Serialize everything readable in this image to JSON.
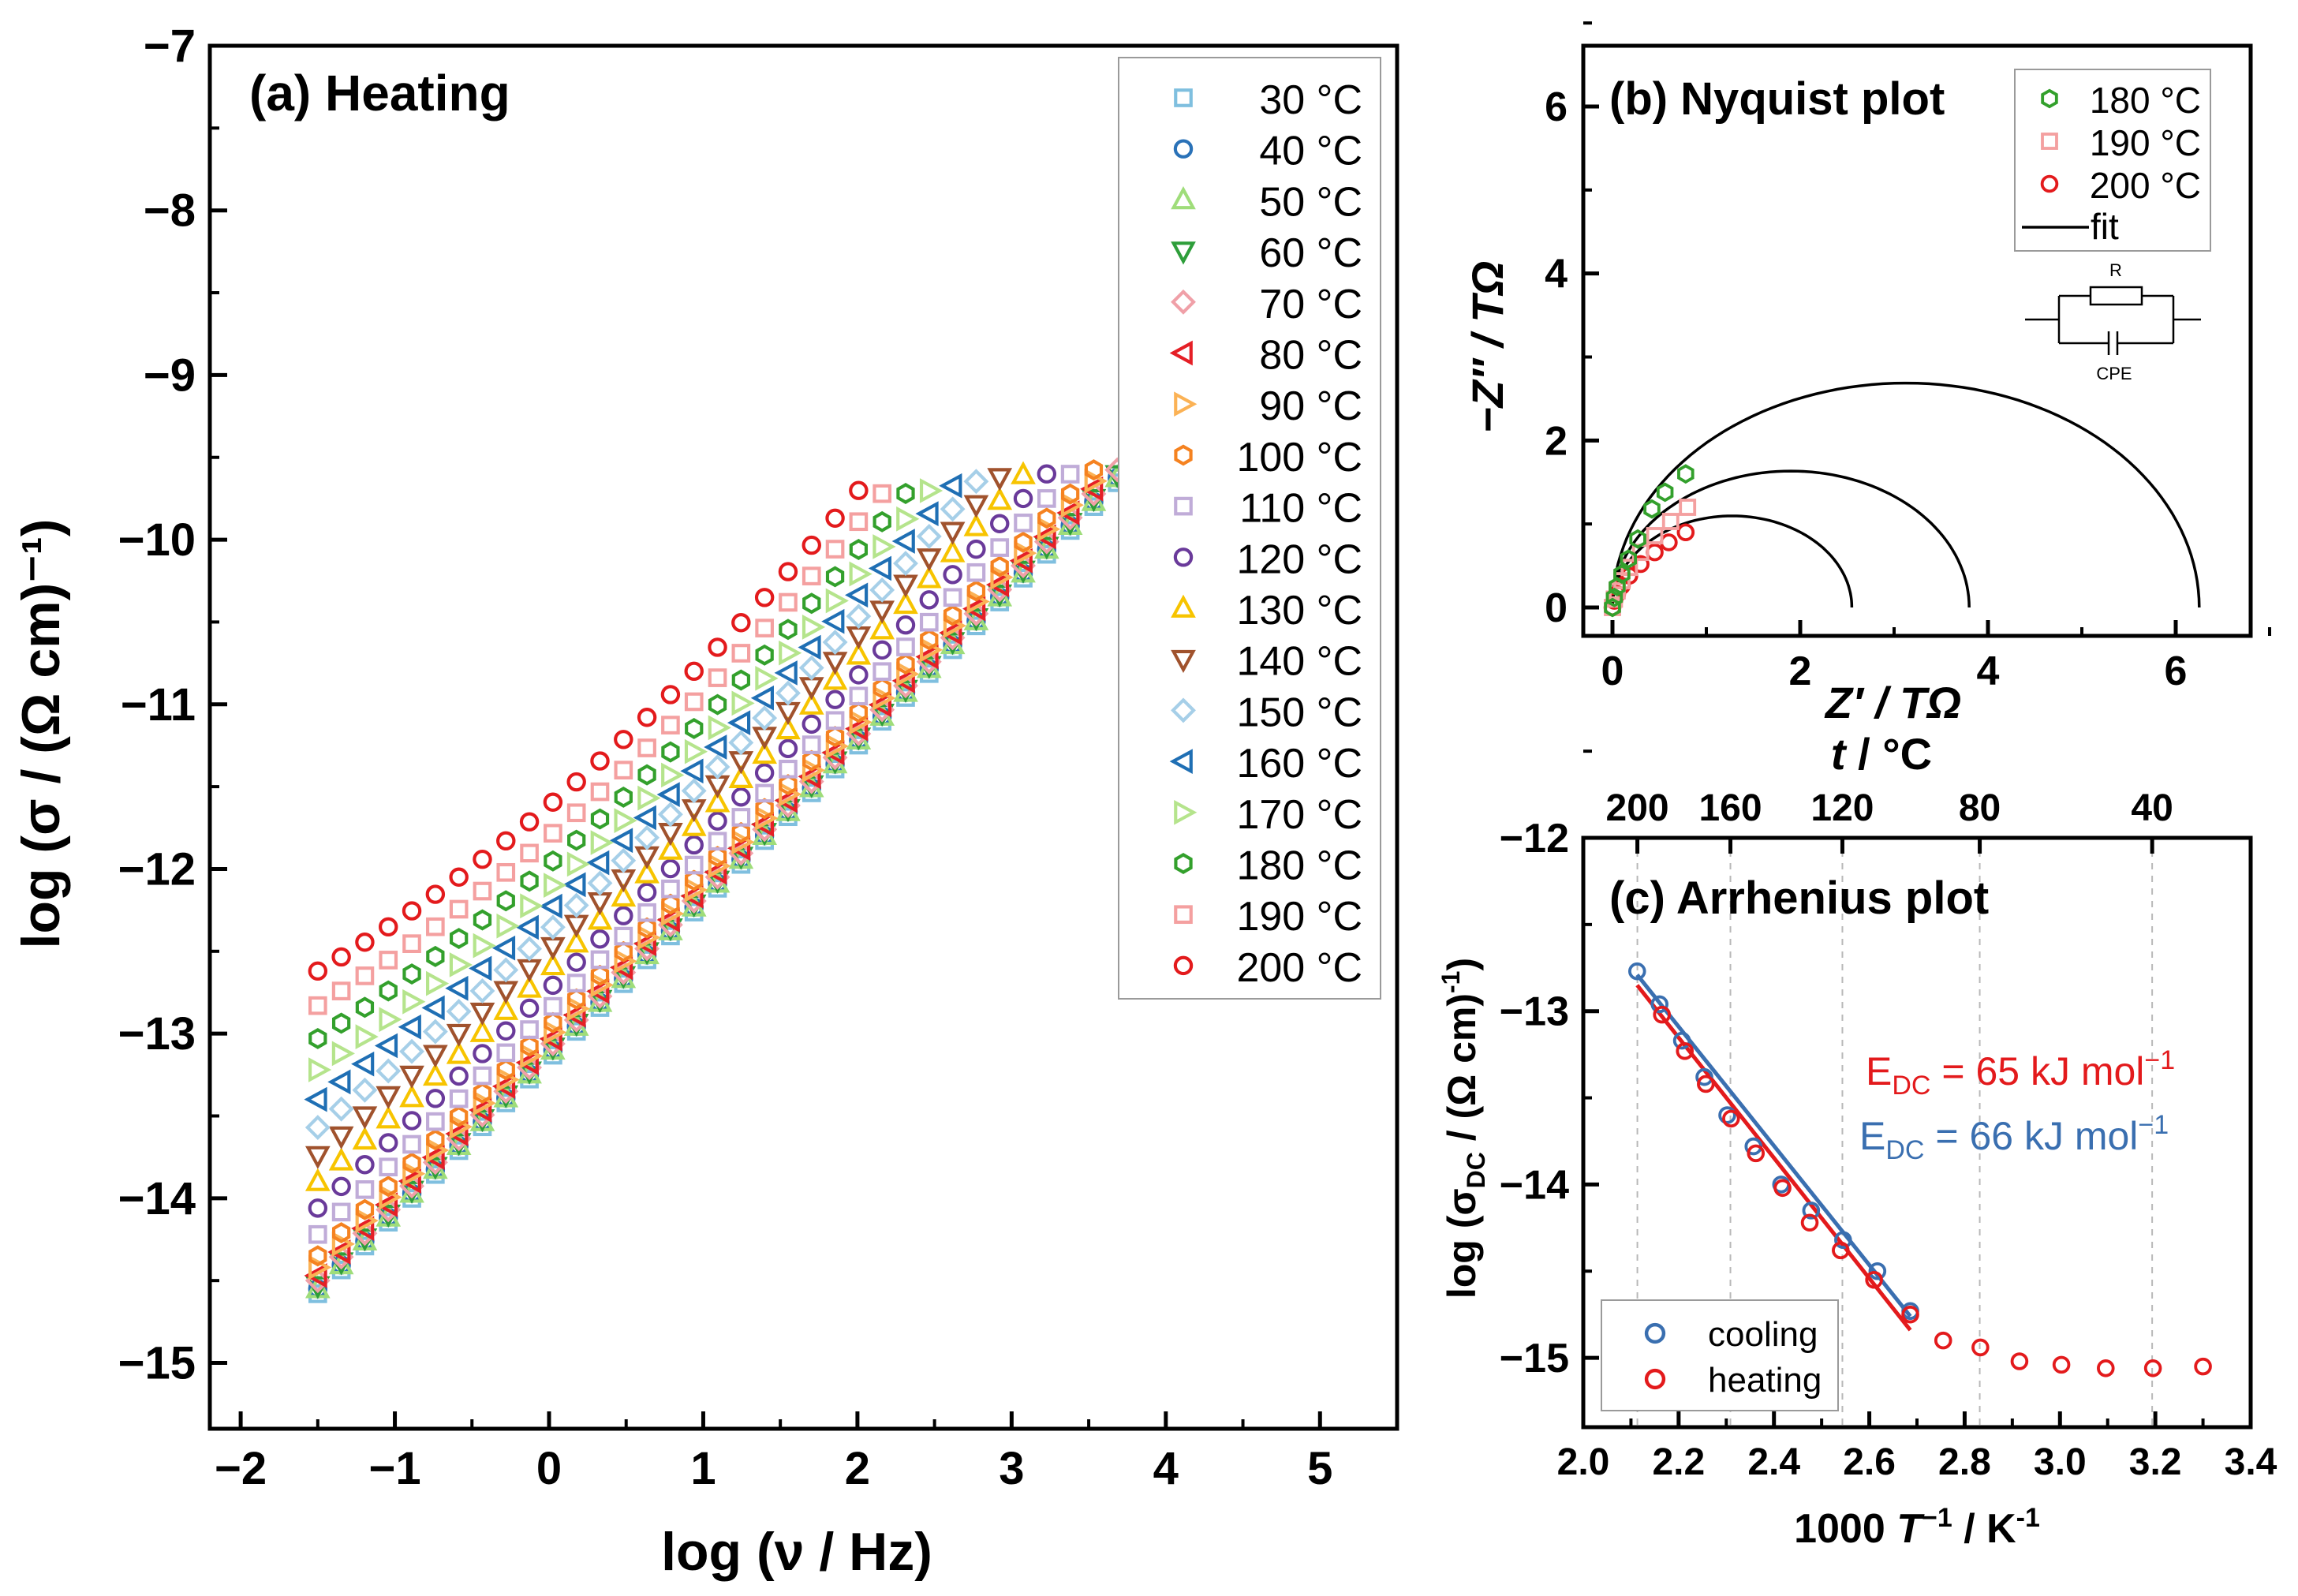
{
  "colors": {
    "30": "#7fbfdf",
    "40": "#2a72b8",
    "50": "#9fdd7a",
    "60": "#2e9e3a",
    "70": "#f0a0a8",
    "80": "#e51f26",
    "90": "#fbb255",
    "100": "#f58220",
    "110": "#c0acd8",
    "120": "#6a3a9a",
    "130": "#f7c400",
    "140": "#a0522d",
    "150": "#a6cfe8",
    "160": "#1f6fb4",
    "170": "#b5e48c",
    "180": "#33a02c",
    "190": "#f4a0a0",
    "200": "#e31a1c",
    "fit": "#000000",
    "cooling": "#3a6fb0",
    "heating": "#e31a1c",
    "arrh_cool": "#3a6fb0",
    "arrh_heat": "#e31a1c"
  },
  "chart_data": [
    {
      "type": "scatter",
      "title": "(a) Heating",
      "xlabel": "log (ν / Hz)",
      "ylabel": "log (σ / (Ω cm)⁻¹)",
      "xlim": [
        -2.2,
        5.5
      ],
      "ylim": [
        -15.4,
        -7
      ],
      "xticks": [
        "−2",
        "−1",
        "0",
        "1",
        "2",
        "3",
        "4",
        "5"
      ],
      "yticks": [
        "−15",
        "−14",
        "−13",
        "−12",
        "−11",
        "−10",
        "−9",
        "−8",
        "−7"
      ],
      "legend_position": "top-right",
      "x_start": -1.5,
      "x_step": 0.1525,
      "x_end": 3.7,
      "series": [
        {
          "name": "30 °C",
          "marker": "square",
          "start": -14.58,
          "slope_low": 0.95,
          "slope_high": 0.95
        },
        {
          "name": "40 °C",
          "marker": "circle",
          "start": -14.55,
          "slope_low": 0.95,
          "slope_high": 0.95
        },
        {
          "name": "50 °C",
          "marker": "triangle-up",
          "start": -14.55,
          "slope_low": 0.95,
          "slope_high": 0.95
        },
        {
          "name": "60 °C",
          "marker": "triangle-down",
          "start": -14.53,
          "slope_low": 0.95,
          "slope_high": 0.95
        },
        {
          "name": "70 °C",
          "marker": "diamond",
          "start": -14.5,
          "slope_low": 0.94,
          "slope_high": 0.95
        },
        {
          "name": "80 °C",
          "marker": "triangle-left",
          "start": -14.47,
          "slope_low": 0.94,
          "slope_high": 0.95
        },
        {
          "name": "90 °C",
          "marker": "triangle-right",
          "start": -14.42,
          "slope_low": 0.93,
          "slope_high": 0.95
        },
        {
          "name": "100 °C",
          "marker": "hexagon",
          "start": -14.35,
          "slope_low": 0.92,
          "slope_high": 0.95
        },
        {
          "name": "110 °C",
          "marker": "square",
          "start": -14.22,
          "slope_low": 0.89,
          "slope_high": 0.95
        },
        {
          "name": "120 °C",
          "marker": "circle",
          "start": -14.06,
          "slope_low": 0.86,
          "slope_high": 0.95
        },
        {
          "name": "130 °C",
          "marker": "triangle-up",
          "start": -13.9,
          "slope_low": 0.82,
          "slope_high": 0.95
        },
        {
          "name": "140 °C",
          "marker": "triangle-down",
          "start": -13.74,
          "slope_low": 0.78,
          "slope_high": 0.95
        },
        {
          "name": "150 °C",
          "marker": "diamond",
          "start": -13.57,
          "slope_low": 0.73,
          "slope_high": 0.95
        },
        {
          "name": "160 °C",
          "marker": "triangle-left",
          "start": -13.4,
          "slope_low": 0.69,
          "slope_high": 0.95
        },
        {
          "name": "170 °C",
          "marker": "triangle-right",
          "start": -13.22,
          "slope_low": 0.64,
          "slope_high": 0.95
        },
        {
          "name": "180 °C",
          "marker": "hexagon",
          "start": -13.03,
          "slope_low": 0.6,
          "slope_high": 0.95
        },
        {
          "name": "190 °C",
          "marker": "square",
          "start": -12.83,
          "slope_low": 0.57,
          "slope_high": 0.95
        },
        {
          "name": "200 °C",
          "marker": "circle",
          "start": -12.62,
          "slope_low": 0.55,
          "slope_high": 0.95
        }
      ]
    },
    {
      "type": "scatter",
      "title": "(b) Nyquist plot",
      "xlabel": "Z′ / TΩ",
      "ylabel": "−Z″ / TΩ",
      "xlim": [
        -0.3,
        6.8
      ],
      "ylim": [
        -0.3,
        6.9
      ],
      "xticks": [
        "0",
        "2",
        "4",
        "6"
      ],
      "yticks": [
        "0",
        "2",
        "4",
        "6"
      ],
      "legend_position": "top-right",
      "legend": [
        "180 °C",
        "190 °C",
        "200 °C",
        "fit"
      ],
      "circuit_labels": {
        "r": "R",
        "cpe": "CPE"
      },
      "series": [
        {
          "name": "180 °C",
          "marker": "hexagon",
          "R": 6.25,
          "data_x": [
            0.0,
            0.02,
            0.05,
            0.1,
            0.17,
            0.27,
            0.42,
            0.56,
            0.78
          ],
          "data_y": [
            0.0,
            0.12,
            0.25,
            0.4,
            0.58,
            0.82,
            1.18,
            1.38,
            1.6
          ]
        },
        {
          "name": "190 °C",
          "marker": "square",
          "R": 3.8,
          "data_x": [
            0.0,
            0.02,
            0.05,
            0.1,
            0.18,
            0.3,
            0.45,
            0.62,
            0.8
          ],
          "data_y": [
            0.0,
            0.1,
            0.2,
            0.32,
            0.48,
            0.66,
            0.86,
            1.03,
            1.2
          ]
        },
        {
          "name": "200 °C",
          "marker": "circle",
          "R": 2.55,
          "data_x": [
            0.0,
            0.02,
            0.05,
            0.1,
            0.18,
            0.3,
            0.45,
            0.6,
            0.78
          ],
          "data_y": [
            0.0,
            0.08,
            0.16,
            0.26,
            0.38,
            0.52,
            0.66,
            0.78,
            0.9
          ]
        }
      ]
    },
    {
      "type": "scatter",
      "title": "(c) Arrhenius plot",
      "xlabel": "1000 T⁻¹ / K⁻¹",
      "ylabel": "log (σDC / (Ω cm)⁻¹)",
      "top_axis_label": "t / °C",
      "xlim": [
        2.0,
        3.4
      ],
      "ylim": [
        -15.4,
        -12
      ],
      "xticks": [
        "2.0",
        "2.2",
        "2.4",
        "2.6",
        "2.8",
        "3.0",
        "3.2",
        "3.4"
      ],
      "yticks": [
        "−15",
        "−14",
        "−13",
        "−12"
      ],
      "top_ticks": [
        {
          "label": "200",
          "t": 200
        },
        {
          "label": "160",
          "t": 160
        },
        {
          "label": "120",
          "t": 120
        },
        {
          "label": "80",
          "t": 80
        },
        {
          "label": "40",
          "t": 40
        }
      ],
      "legend_position": "bottom-left",
      "series": [
        {
          "name": "cooling",
          "x": [
            2.113,
            2.16,
            2.207,
            2.254,
            2.302,
            2.357,
            2.415,
            2.478,
            2.545,
            2.617,
            2.686
          ],
          "y": [
            -12.77,
            -12.96,
            -13.17,
            -13.38,
            -13.6,
            -13.78,
            -14.0,
            -14.15,
            -14.32,
            -14.5,
            -14.73
          ]
        },
        {
          "name": "heating",
          "x": [
            2.165,
            2.213,
            2.257,
            2.31,
            2.362,
            2.418,
            2.475,
            2.54,
            2.61,
            2.686,
            2.755,
            2.833,
            2.915,
            3.003,
            3.096,
            3.195,
            3.3
          ],
          "y": [
            -13.02,
            -13.23,
            -13.42,
            -13.62,
            -13.82,
            -14.02,
            -14.22,
            -14.38,
            -14.55,
            -14.75,
            -14.9,
            -14.94,
            -15.02,
            -15.04,
            -15.06,
            -15.06,
            -15.05
          ]
        }
      ],
      "fits": [
        {
          "name": "heating",
          "x": [
            2.113,
            2.686
          ],
          "y": [
            -12.85,
            -14.84
          ]
        },
        {
          "name": "cooling",
          "x": [
            2.113,
            2.686
          ],
          "y": [
            -12.79,
            -14.76
          ]
        }
      ],
      "annotations": [
        {
          "label": "E",
          "sub": "DC",
          "text": " = 65 kJ mol",
          "sup": "−1"
        },
        {
          "label": "E",
          "sub": "DC",
          "text": " = 66 kJ mol",
          "sup": "−1"
        }
      ]
    }
  ]
}
